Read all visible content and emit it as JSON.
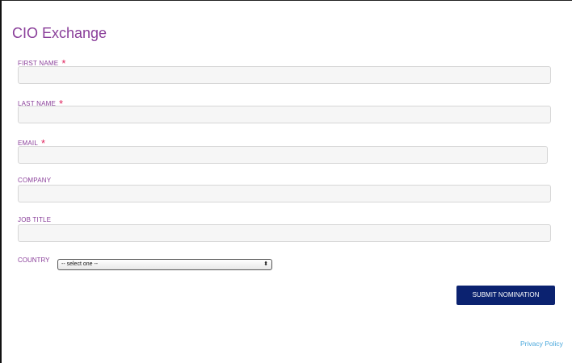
{
  "title": "CIO Exchange",
  "fields": [
    {
      "label": "FIRST NAME",
      "required": "*",
      "value": ""
    },
    {
      "label": "LAST NAME",
      "required": "*",
      "value": ""
    },
    {
      "label": "EMAIL",
      "required": "*",
      "value": ""
    },
    {
      "label": "COMPANY",
      "value": ""
    },
    {
      "label": "JOB TITLE",
      "value": ""
    }
  ],
  "country": {
    "label": "COUNTRY",
    "selected": "-- select one --"
  },
  "submit_label": "SUBMIT NOMINATION",
  "privacy_label": "Privacy Policy",
  "colors": {
    "accent": "#8a3f9a",
    "button": "#0b2270",
    "link": "#4aa8dc",
    "required": "#e0245e"
  }
}
